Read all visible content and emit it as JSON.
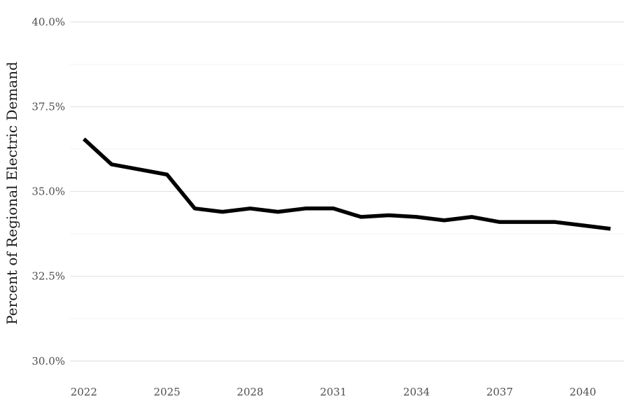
{
  "chart_data": {
    "type": "line",
    "title": "",
    "xlabel": "",
    "ylabel": "Percent of Regional Electric Demand",
    "xlim": [
      2021.5,
      2041.5
    ],
    "ylim": [
      29.5,
      40.4
    ],
    "grid": true,
    "legend": "none",
    "x_ticks": [
      2022,
      2025,
      2028,
      2031,
      2034,
      2037,
      2040
    ],
    "x_tick_labels": [
      "2022",
      "2025",
      "2028",
      "2031",
      "2034",
      "2037",
      "2040"
    ],
    "y_ticks": [
      30.0,
      32.5,
      35.0,
      37.5,
      40.0
    ],
    "y_tick_labels": [
      "30.0%",
      "32.5%",
      "35.0%",
      "37.5%",
      "40.0%"
    ],
    "y_minor_ticks": [
      31.25,
      33.75,
      36.25,
      38.75
    ],
    "series": [
      {
        "color": "#000000",
        "x": [
          2022,
          2023,
          2024,
          2025,
          2026,
          2027,
          2028,
          2029,
          2030,
          2031,
          2032,
          2033,
          2034,
          2035,
          2036,
          2037,
          2038,
          2039,
          2040,
          2041
        ],
        "values": [
          36.55,
          35.8,
          35.65,
          35.5,
          34.5,
          34.4,
          34.5,
          34.4,
          34.5,
          34.5,
          34.25,
          34.3,
          34.25,
          34.15,
          34.25,
          34.1,
          34.1,
          34.1,
          34.0,
          33.9
        ]
      }
    ]
  }
}
